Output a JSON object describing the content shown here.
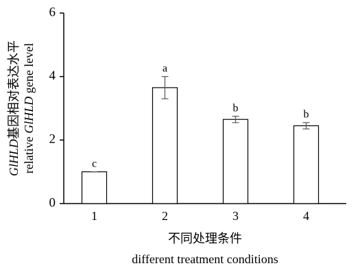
{
  "chart_data": {
    "type": "bar",
    "ylabel": [
      [
        {
          "text": "GlHLD",
          "italic": true
        },
        {
          "text": "基因相对表达水平"
        }
      ],
      [
        {
          "text": "relative "
        },
        {
          "text": "GlHLD",
          "italic": true
        },
        {
          "text": " gene level"
        }
      ]
    ],
    "xlabel": [
      "不同处理条件",
      "different treatment conditions"
    ],
    "categories": [
      "1",
      "2",
      "3",
      "4"
    ],
    "values": [
      1.0,
      3.65,
      2.65,
      2.45
    ],
    "errors": [
      0.0,
      0.35,
      0.1,
      0.1
    ],
    "annotations": [
      "c",
      "a",
      "b",
      "b"
    ],
    "color": "#ffffff",
    "ylim": [
      0,
      6
    ],
    "yticks": [
      0,
      2,
      4,
      6
    ],
    "grid": false
  }
}
